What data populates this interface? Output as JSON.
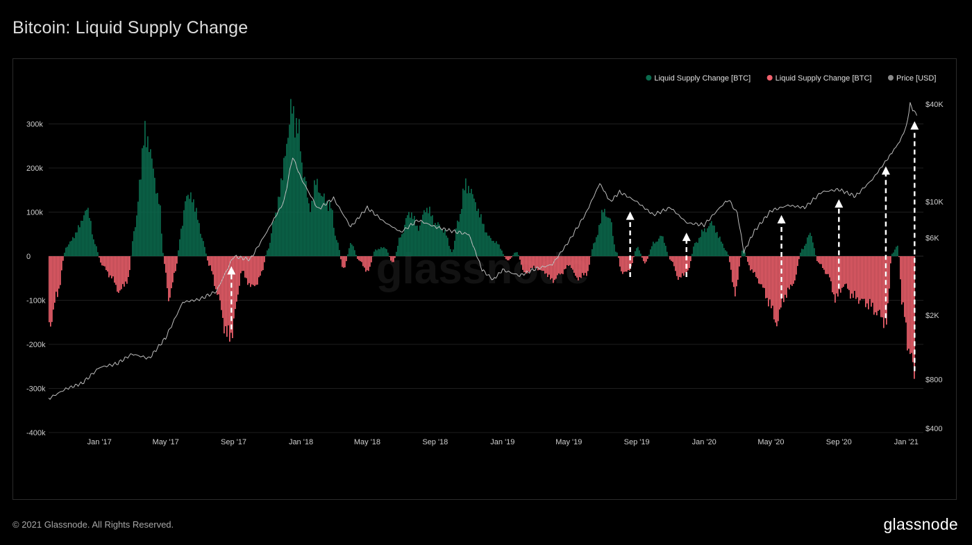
{
  "header": {
    "title": "Bitcoin: Liquid Supply Change"
  },
  "footer": {
    "copyright": "© 2021 Glassnode. All Rights Reserved.",
    "logo": "glassnode"
  },
  "watermark": "glassnode",
  "colors": {
    "background": "#000000",
    "positive": "#0b6b4e",
    "negative": "#f0616d",
    "price": "#bdbdbd",
    "grid": "#1e1e1e",
    "arrow": "#ffffff"
  },
  "chart_data": {
    "type": "bar",
    "title": "Bitcoin: Liquid Supply Change",
    "legend": {
      "placement": "top-right",
      "entries": [
        {
          "label": "Liquid Supply Change [BTC]",
          "color": "#0b6b4e"
        },
        {
          "label": "Liquid Supply Change [BTC]",
          "color": "#f0616d"
        },
        {
          "label": "Price [USD]",
          "color": "#8a8a8a"
        }
      ]
    },
    "x_range": [
      "2016-10-01",
      "2021-02-01"
    ],
    "x_ticks": [
      {
        "date": "2017-01-01",
        "label": "Jan '17"
      },
      {
        "date": "2017-05-01",
        "label": "May '17"
      },
      {
        "date": "2017-09-01",
        "label": "Sep '17"
      },
      {
        "date": "2018-01-01",
        "label": "Jan '18"
      },
      {
        "date": "2018-05-01",
        "label": "May '18"
      },
      {
        "date": "2018-09-01",
        "label": "Sep '18"
      },
      {
        "date": "2019-01-01",
        "label": "Jan '19"
      },
      {
        "date": "2019-05-01",
        "label": "May '19"
      },
      {
        "date": "2019-09-01",
        "label": "Sep '19"
      },
      {
        "date": "2020-01-01",
        "label": "Jan '20"
      },
      {
        "date": "2020-05-01",
        "label": "May '20"
      },
      {
        "date": "2020-09-01",
        "label": "Sep '20"
      },
      {
        "date": "2021-01-01",
        "label": "Jan '21"
      }
    ],
    "y_left": {
      "range": [
        -400000,
        300000
      ],
      "ticks": [
        {
          "value": 300000,
          "label": "300k"
        },
        {
          "value": 200000,
          "label": "200k"
        },
        {
          "value": 100000,
          "label": "100k"
        },
        {
          "value": 0,
          "label": "0"
        },
        {
          "value": -100000,
          "label": "-100k"
        },
        {
          "value": -200000,
          "label": "-200k"
        },
        {
          "value": -300000,
          "label": "-300k"
        },
        {
          "value": -400000,
          "label": "-400k"
        }
      ]
    },
    "y_right": {
      "scale": "log",
      "range": [
        400,
        40000
      ],
      "ticks": [
        {
          "value": 40000,
          "label": "$40K"
        },
        {
          "value": 10000,
          "label": "$10K"
        },
        {
          "value": 6000,
          "label": "$6K"
        },
        {
          "value": 2000,
          "label": "$2K"
        },
        {
          "value": 800,
          "label": "$800"
        },
        {
          "value": 400,
          "label": "$400"
        }
      ]
    },
    "grid": true,
    "supply_change": [
      [
        "2016-10-01",
        -160000
      ],
      [
        "2016-10-15",
        -90000
      ],
      [
        "2016-11-01",
        20000
      ],
      [
        "2016-11-15",
        45000
      ],
      [
        "2016-12-01",
        85000
      ],
      [
        "2016-12-10",
        110000
      ],
      [
        "2016-12-22",
        30000
      ],
      [
        "2017-01-05",
        -20000
      ],
      [
        "2017-01-20",
        -45000
      ],
      [
        "2017-02-05",
        -80000
      ],
      [
        "2017-02-20",
        -55000
      ],
      [
        "2017-03-05",
        60000
      ],
      [
        "2017-03-15",
        180000
      ],
      [
        "2017-03-24",
        290000
      ],
      [
        "2017-04-05",
        215000
      ],
      [
        "2017-04-18",
        120000
      ],
      [
        "2017-04-28",
        -20000
      ],
      [
        "2017-05-06",
        -100000
      ],
      [
        "2017-05-18",
        -30000
      ],
      [
        "2017-05-28",
        60000
      ],
      [
        "2017-06-08",
        145000
      ],
      [
        "2017-06-22",
        115000
      ],
      [
        "2017-07-05",
        40000
      ],
      [
        "2017-07-18",
        -20000
      ],
      [
        "2017-08-01",
        -80000
      ],
      [
        "2017-08-15",
        -160000
      ],
      [
        "2017-08-25",
        -190000
      ],
      [
        "2017-09-05",
        -110000
      ],
      [
        "2017-09-15",
        -30000
      ],
      [
        "2017-09-25",
        -60000
      ],
      [
        "2017-10-08",
        -70000
      ],
      [
        "2017-10-20",
        -40000
      ],
      [
        "2017-11-01",
        15000
      ],
      [
        "2017-11-12",
        80000
      ],
      [
        "2017-11-25",
        160000
      ],
      [
        "2017-12-06",
        270000
      ],
      [
        "2017-12-15",
        335000
      ],
      [
        "2017-12-25",
        290000
      ],
      [
        "2018-01-05",
        190000
      ],
      [
        "2018-01-15",
        110000
      ],
      [
        "2018-01-28",
        165000
      ],
      [
        "2018-02-10",
        130000
      ],
      [
        "2018-02-22",
        115000
      ],
      [
        "2018-03-05",
        40000
      ],
      [
        "2018-03-18",
        -30000
      ],
      [
        "2018-04-01",
        30000
      ],
      [
        "2018-04-15",
        -10000
      ],
      [
        "2018-05-01",
        -35000
      ],
      [
        "2018-05-15",
        15000
      ],
      [
        "2018-06-01",
        20000
      ],
      [
        "2018-06-15",
        -15000
      ],
      [
        "2018-07-01",
        50000
      ],
      [
        "2018-07-15",
        100000
      ],
      [
        "2018-08-01",
        65000
      ],
      [
        "2018-08-15",
        110000
      ],
      [
        "2018-09-01",
        75000
      ],
      [
        "2018-09-15",
        60000
      ],
      [
        "2018-10-01",
        10000
      ],
      [
        "2018-10-12",
        85000
      ],
      [
        "2018-10-26",
        165000
      ],
      [
        "2018-11-08",
        135000
      ],
      [
        "2018-11-22",
        85000
      ],
      [
        "2018-12-05",
        45000
      ],
      [
        "2018-12-20",
        30000
      ],
      [
        "2019-01-10",
        -10000
      ],
      [
        "2019-01-25",
        10000
      ],
      [
        "2019-02-10",
        -40000
      ],
      [
        "2019-02-25",
        -25000
      ],
      [
        "2019-03-15",
        -35000
      ],
      [
        "2019-04-01",
        -55000
      ],
      [
        "2019-04-15",
        -40000
      ],
      [
        "2019-05-01",
        -20000
      ],
      [
        "2019-05-15",
        -50000
      ],
      [
        "2019-06-01",
        -40000
      ],
      [
        "2019-06-15",
        30000
      ],
      [
        "2019-07-01",
        100000
      ],
      [
        "2019-07-12",
        90000
      ],
      [
        "2019-07-25",
        10000
      ],
      [
        "2019-08-05",
        -40000
      ],
      [
        "2019-08-18",
        -30000
      ],
      [
        "2019-09-01",
        20000
      ],
      [
        "2019-09-15",
        -15000
      ],
      [
        "2019-10-01",
        30000
      ],
      [
        "2019-10-15",
        45000
      ],
      [
        "2019-11-01",
        -10000
      ],
      [
        "2019-11-15",
        -50000
      ],
      [
        "2019-12-01",
        -35000
      ],
      [
        "2019-12-15",
        30000
      ],
      [
        "2020-01-01",
        60000
      ],
      [
        "2020-01-15",
        75000
      ],
      [
        "2020-01-28",
        40000
      ],
      [
        "2020-02-10",
        10000
      ],
      [
        "2020-02-25",
        -80000
      ],
      [
        "2020-03-10",
        15000
      ],
      [
        "2020-03-25",
        -30000
      ],
      [
        "2020-04-10",
        -60000
      ],
      [
        "2020-04-25",
        -100000
      ],
      [
        "2020-05-10",
        -150000
      ],
      [
        "2020-05-25",
        -90000
      ],
      [
        "2020-06-10",
        -60000
      ],
      [
        "2020-06-25",
        15000
      ],
      [
        "2020-07-10",
        50000
      ],
      [
        "2020-07-25",
        -15000
      ],
      [
        "2020-08-10",
        -40000
      ],
      [
        "2020-08-25",
        -95000
      ],
      [
        "2020-09-10",
        -65000
      ],
      [
        "2020-09-25",
        -90000
      ],
      [
        "2020-10-10",
        -100000
      ],
      [
        "2020-10-25",
        -110000
      ],
      [
        "2020-11-10",
        -130000
      ],
      [
        "2020-11-25",
        -150000
      ],
      [
        "2020-12-05",
        5000
      ],
      [
        "2020-12-15",
        25000
      ],
      [
        "2020-12-25",
        -120000
      ],
      [
        "2021-01-05",
        -210000
      ],
      [
        "2021-01-15",
        -270000
      ]
    ],
    "price_usd": [
      [
        "2016-10-01",
        610
      ],
      [
        "2016-11-01",
        700
      ],
      [
        "2016-12-01",
        760
      ],
      [
        "2017-01-01",
        950
      ],
      [
        "2017-02-01",
        1000
      ],
      [
        "2017-03-01",
        1150
      ],
      [
        "2017-04-01",
        1080
      ],
      [
        "2017-05-01",
        1450
      ],
      [
        "2017-06-01",
        2400
      ],
      [
        "2017-07-01",
        2500
      ],
      [
        "2017-08-01",
        2800
      ],
      [
        "2017-09-01",
        4600
      ],
      [
        "2017-10-01",
        4400
      ],
      [
        "2017-11-01",
        6600
      ],
      [
        "2017-12-01",
        10000
      ],
      [
        "2017-12-17",
        19000
      ],
      [
        "2018-01-01",
        14000
      ],
      [
        "2018-02-01",
        9000
      ],
      [
        "2018-03-01",
        10500
      ],
      [
        "2018-04-01",
        7000
      ],
      [
        "2018-05-01",
        9200
      ],
      [
        "2018-06-01",
        7500
      ],
      [
        "2018-07-01",
        6500
      ],
      [
        "2018-08-01",
        7700
      ],
      [
        "2018-09-01",
        7000
      ],
      [
        "2018-10-01",
        6600
      ],
      [
        "2018-11-01",
        6300
      ],
      [
        "2018-11-25",
        3800
      ],
      [
        "2018-12-15",
        3300
      ],
      [
        "2019-01-01",
        3800
      ],
      [
        "2019-02-01",
        3500
      ],
      [
        "2019-03-01",
        3850
      ],
      [
        "2019-04-01",
        4100
      ],
      [
        "2019-05-01",
        5700
      ],
      [
        "2019-06-01",
        8500
      ],
      [
        "2019-06-26",
        13000
      ],
      [
        "2019-07-15",
        10000
      ],
      [
        "2019-08-01",
        11500
      ],
      [
        "2019-09-01",
        10000
      ],
      [
        "2019-10-01",
        8300
      ],
      [
        "2019-11-01",
        9200
      ],
      [
        "2019-12-01",
        7400
      ],
      [
        "2020-01-01",
        7200
      ],
      [
        "2020-02-01",
        9400
      ],
      [
        "2020-02-14",
        10300
      ],
      [
        "2020-03-01",
        8500
      ],
      [
        "2020-03-13",
        4900
      ],
      [
        "2020-04-01",
        6600
      ],
      [
        "2020-05-01",
        8800
      ],
      [
        "2020-06-01",
        9500
      ],
      [
        "2020-07-01",
        9200
      ],
      [
        "2020-08-01",
        11500
      ],
      [
        "2020-09-01",
        11900
      ],
      [
        "2020-10-01",
        10800
      ],
      [
        "2020-11-01",
        13800
      ],
      [
        "2020-12-01",
        19000
      ],
      [
        "2020-12-20",
        23500
      ],
      [
        "2021-01-01",
        29000
      ],
      [
        "2021-01-08",
        40000
      ],
      [
        "2021-01-15",
        36000
      ],
      [
        "2021-01-20",
        34000
      ]
    ],
    "annotations": {
      "type": "upward dashed arrows",
      "dates": [
        "2017-08-28",
        "2019-08-20",
        "2019-11-30",
        "2020-05-20",
        "2020-09-01",
        "2020-11-25",
        "2021-01-16"
      ]
    }
  }
}
